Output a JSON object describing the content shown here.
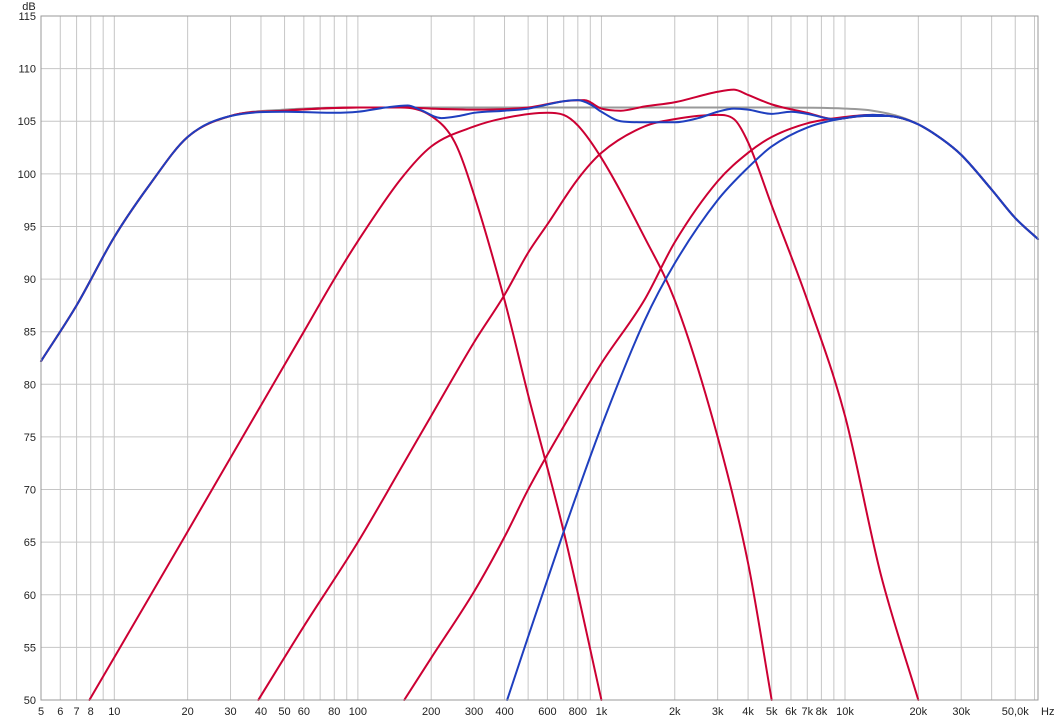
{
  "chart_data": {
    "type": "line",
    "x_scale": "log",
    "xlim": [
      5,
      62000
    ],
    "ylim": [
      50,
      115
    ],
    "grid": true,
    "y_unit_label": "dB",
    "x_unit_label": "Hz",
    "y_ticks": [
      50,
      55,
      60,
      65,
      70,
      75,
      80,
      85,
      90,
      95,
      100,
      105,
      110,
      115
    ],
    "x_ticks": [
      {
        "value": 5,
        "label": "5"
      },
      {
        "value": 6,
        "label": "6"
      },
      {
        "value": 7,
        "label": "7"
      },
      {
        "value": 8,
        "label": "8"
      },
      {
        "value": 10,
        "label": "10"
      },
      {
        "value": 20,
        "label": "20"
      },
      {
        "value": 30,
        "label": "30"
      },
      {
        "value": 40,
        "label": "40"
      },
      {
        "value": 50,
        "label": "50"
      },
      {
        "value": 60,
        "label": "60"
      },
      {
        "value": 80,
        "label": "80"
      },
      {
        "value": 100,
        "label": "100"
      },
      {
        "value": 200,
        "label": "200"
      },
      {
        "value": 300,
        "label": "300"
      },
      {
        "value": 400,
        "label": "400"
      },
      {
        "value": 600,
        "label": "600"
      },
      {
        "value": 800,
        "label": "800"
      },
      {
        "value": 1000,
        "label": "1k"
      },
      {
        "value": 2000,
        "label": "2k"
      },
      {
        "value": 3000,
        "label": "3k"
      },
      {
        "value": 4000,
        "label": "4k"
      },
      {
        "value": 5000,
        "label": "5k"
      },
      {
        "value": 6000,
        "label": "6k"
      },
      {
        "value": 7000,
        "label": "7k"
      },
      {
        "value": 8000,
        "label": "8k"
      },
      {
        "value": 10000,
        "label": "10k"
      },
      {
        "value": 20000,
        "label": "20k"
      },
      {
        "value": 30000,
        "label": "30k"
      },
      {
        "value": 50000,
        "label": "50,0k"
      }
    ],
    "series": [
      {
        "color": "#999999",
        "points": [
          [
            5,
            82.2
          ],
          [
            7,
            87.5
          ],
          [
            10,
            94
          ],
          [
            14,
            99
          ],
          [
            20,
            103.5
          ],
          [
            30,
            105.5
          ],
          [
            50,
            106.1
          ],
          [
            100,
            106.3
          ],
          [
            1000,
            106.3
          ],
          [
            5000,
            106.3
          ],
          [
            10000,
            106.2
          ],
          [
            13000,
            106
          ],
          [
            17000,
            105.4
          ],
          [
            20000,
            104.7
          ],
          [
            25000,
            103.3
          ],
          [
            30000,
            101.8
          ],
          [
            40000,
            98.5
          ],
          [
            50000,
            95.8
          ],
          [
            62000,
            93.8
          ]
        ]
      },
      {
        "color": "#cc0033",
        "points": [
          [
            7.9,
            50
          ],
          [
            20,
            66
          ],
          [
            40,
            78
          ],
          [
            60,
            85
          ],
          [
            80,
            90
          ],
          [
            100,
            93.6
          ],
          [
            150,
            99.5
          ],
          [
            200,
            102.6
          ],
          [
            300,
            104.5
          ],
          [
            400,
            105.3
          ],
          [
            600,
            105.8
          ],
          [
            700,
            105.6
          ],
          [
            800,
            104.6
          ],
          [
            1000,
            101.5
          ],
          [
            1500,
            94
          ],
          [
            2000,
            88
          ],
          [
            3000,
            75
          ],
          [
            4000,
            63
          ],
          [
            5000,
            50
          ]
        ]
      },
      {
        "color": "#cc0033",
        "points": [
          [
            39,
            50
          ],
          [
            60,
            57
          ],
          [
            100,
            65
          ],
          [
            150,
            72
          ],
          [
            200,
            77
          ],
          [
            300,
            84
          ],
          [
            400,
            88.5
          ],
          [
            500,
            92.5
          ],
          [
            600,
            95.2
          ],
          [
            800,
            99.5
          ],
          [
            1000,
            102
          ],
          [
            1500,
            104.5
          ],
          [
            2000,
            105.2
          ],
          [
            3000,
            105.6
          ],
          [
            3500,
            105.2
          ],
          [
            4000,
            103
          ],
          [
            5000,
            97
          ],
          [
            7000,
            88
          ],
          [
            10000,
            77
          ],
          [
            14000,
            62
          ],
          [
            20000,
            50
          ]
        ]
      },
      {
        "color": "#cc0033",
        "points": [
          [
            155,
            50
          ],
          [
            200,
            54
          ],
          [
            300,
            60.3
          ],
          [
            400,
            65.5
          ],
          [
            500,
            70
          ],
          [
            700,
            76
          ],
          [
            1000,
            82
          ],
          [
            1500,
            88
          ],
          [
            2000,
            93.5
          ],
          [
            3000,
            99.3
          ],
          [
            4000,
            102
          ],
          [
            5000,
            103.5
          ],
          [
            7000,
            104.8
          ],
          [
            10000,
            105.4
          ],
          [
            13000,
            105.6
          ],
          [
            17000,
            105.3
          ],
          [
            20000,
            104.7
          ],
          [
            25000,
            103.3
          ],
          [
            30000,
            101.8
          ],
          [
            40000,
            98.5
          ],
          [
            50000,
            95.8
          ],
          [
            62000,
            93.8
          ]
        ]
      },
      {
        "color": "#cc0033",
        "points": [
          [
            5,
            82.2
          ],
          [
            7,
            87.5
          ],
          [
            10,
            94
          ],
          [
            14,
            99
          ],
          [
            20,
            103.5
          ],
          [
            30,
            105.5
          ],
          [
            50,
            106
          ],
          [
            100,
            106.3
          ],
          [
            150,
            106.3
          ],
          [
            200,
            105.5
          ],
          [
            250,
            103
          ],
          [
            300,
            98
          ],
          [
            400,
            88
          ],
          [
            500,
            79
          ],
          [
            700,
            66
          ],
          [
            1000,
            50
          ]
        ]
      },
      {
        "color": "#cc0033",
        "points": [
          [
            5,
            82.2
          ],
          [
            7,
            87.5
          ],
          [
            10,
            94
          ],
          [
            14,
            99
          ],
          [
            20,
            103.5
          ],
          [
            30,
            105.5
          ],
          [
            50,
            106
          ],
          [
            100,
            106.3
          ],
          [
            160,
            106.3
          ],
          [
            200,
            106.2
          ],
          [
            300,
            106.1
          ],
          [
            500,
            106.3
          ],
          [
            700,
            106.9
          ],
          [
            850,
            107
          ],
          [
            1000,
            106.2
          ],
          [
            1200,
            106
          ],
          [
            1500,
            106.4
          ],
          [
            2000,
            106.8
          ],
          [
            3000,
            107.8
          ],
          [
            3500,
            108
          ],
          [
            4000,
            107.5
          ],
          [
            5000,
            106.6
          ],
          [
            7000,
            105.8
          ],
          [
            9000,
            105.2
          ],
          [
            12000,
            105.5
          ],
          [
            15000,
            105.5
          ],
          [
            20000,
            104.7
          ],
          [
            25000,
            103.3
          ],
          [
            30000,
            101.8
          ],
          [
            40000,
            98.5
          ],
          [
            50000,
            95.8
          ],
          [
            62000,
            93.8
          ]
        ]
      },
      {
        "color": "#1f3fbf",
        "points": [
          [
            410,
            50
          ],
          [
            500,
            56
          ],
          [
            700,
            66
          ],
          [
            1000,
            76
          ],
          [
            1500,
            86
          ],
          [
            2000,
            91.5
          ],
          [
            3000,
            97.5
          ],
          [
            4000,
            100.6
          ],
          [
            5000,
            102.6
          ],
          [
            7000,
            104.4
          ],
          [
            10000,
            105.3
          ],
          [
            13000,
            105.6
          ],
          [
            17000,
            105.3
          ],
          [
            20000,
            104.7
          ],
          [
            25000,
            103.3
          ],
          [
            30000,
            101.8
          ],
          [
            40000,
            98.5
          ],
          [
            50000,
            95.8
          ],
          [
            62000,
            93.8
          ]
        ]
      },
      {
        "color": "#1f3fbf",
        "points": [
          [
            5,
            82.2
          ],
          [
            7,
            87.5
          ],
          [
            10,
            94
          ],
          [
            14,
            99
          ],
          [
            20,
            103.5
          ],
          [
            30,
            105.5
          ],
          [
            50,
            105.9
          ],
          [
            80,
            105.8
          ],
          [
            100,
            105.9
          ],
          [
            130,
            106.3
          ],
          [
            160,
            106.5
          ],
          [
            180,
            106.1
          ],
          [
            220,
            105.3
          ],
          [
            260,
            105.5
          ],
          [
            300,
            105.8
          ],
          [
            400,
            106
          ],
          [
            500,
            106.2
          ],
          [
            700,
            106.9
          ],
          [
            800,
            107
          ],
          [
            900,
            106.6
          ],
          [
            1000,
            105.9
          ],
          [
            1200,
            105
          ],
          [
            1500,
            104.9
          ],
          [
            2000,
            104.9
          ],
          [
            2500,
            105.3
          ],
          [
            3000,
            105.9
          ],
          [
            3500,
            106.2
          ],
          [
            4000,
            106.1
          ],
          [
            5000,
            105.7
          ],
          [
            6000,
            105.9
          ],
          [
            7000,
            105.7
          ],
          [
            9000,
            105.2
          ],
          [
            12000,
            105.5
          ],
          [
            15000,
            105.5
          ],
          [
            20000,
            104.7
          ],
          [
            25000,
            103.3
          ],
          [
            30000,
            101.8
          ],
          [
            40000,
            98.5
          ],
          [
            50000,
            95.8
          ],
          [
            62000,
            93.8
          ]
        ]
      }
    ]
  }
}
